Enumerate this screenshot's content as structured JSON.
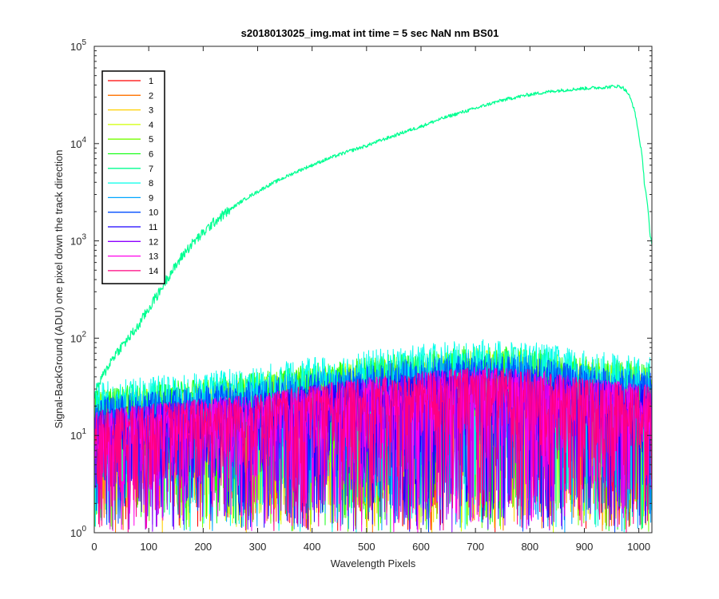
{
  "chart_data": {
    "type": "line",
    "title": "s2018013025_img.mat int time = 5 sec  NaN nm BS01",
    "xlabel": "Wavelength Pixels",
    "ylabel": "Signal-BackGround (ADU) one pixel down the track direction",
    "xlim": [
      0,
      1024
    ],
    "ylim": [
      1,
      100000
    ],
    "yscale": "log",
    "xticks": [
      "0",
      "100",
      "200",
      "300",
      "400",
      "500",
      "600",
      "700",
      "800",
      "900",
      "1000"
    ],
    "yticks": [
      {
        "base": "10",
        "exp": "0"
      },
      {
        "base": "10",
        "exp": "1"
      },
      {
        "base": "10",
        "exp": "2"
      },
      {
        "base": "10",
        "exp": "3"
      },
      {
        "base": "10",
        "exp": "4"
      },
      {
        "base": "10",
        "exp": "5"
      }
    ],
    "grid": false,
    "legend_position": "top-left",
    "main_series": {
      "name": "7",
      "x": [
        0,
        20,
        40,
        60,
        80,
        100,
        120,
        150,
        200,
        250,
        300,
        350,
        400,
        450,
        500,
        550,
        600,
        650,
        700,
        750,
        800,
        850,
        900,
        940,
        960,
        970,
        980,
        990,
        1000,
        1010,
        1020,
        1024
      ],
      "y": [
        25,
        45,
        70,
        95,
        130,
        200,
        300,
        550,
        1200,
        2100,
        3200,
        4500,
        6000,
        7700,
        9500,
        12000,
        15000,
        19000,
        23000,
        28000,
        32000,
        35000,
        37000,
        38000,
        39000,
        38000,
        33000,
        24000,
        12000,
        4000,
        1200,
        900
      ]
    },
    "noise_envelope": {
      "note_x": [
        0,
        100,
        200,
        300,
        400,
        500,
        600,
        700,
        800,
        900,
        1024
      ],
      "high_series_peak": [
        30,
        35,
        40,
        45,
        55,
        65,
        75,
        85,
        80,
        65,
        55
      ]
    },
    "series": [
      {
        "name": "1",
        "color": "#ff0000"
      },
      {
        "name": "2",
        "color": "#ff7300"
      },
      {
        "name": "3",
        "color": "#ffd000"
      },
      {
        "name": "4",
        "color": "#d0ff00"
      },
      {
        "name": "5",
        "color": "#74ff00"
      },
      {
        "name": "6",
        "color": "#1aff1a"
      },
      {
        "name": "7",
        "color": "#00ff91"
      },
      {
        "name": "8",
        "color": "#00ffea"
      },
      {
        "name": "9",
        "color": "#00a6ff"
      },
      {
        "name": "10",
        "color": "#004dff"
      },
      {
        "name": "11",
        "color": "#1a00ff"
      },
      {
        "name": "12",
        "color": "#8c00ff"
      },
      {
        "name": "13",
        "color": "#ff00ea"
      },
      {
        "name": "14",
        "color": "#ff0080"
      }
    ]
  }
}
